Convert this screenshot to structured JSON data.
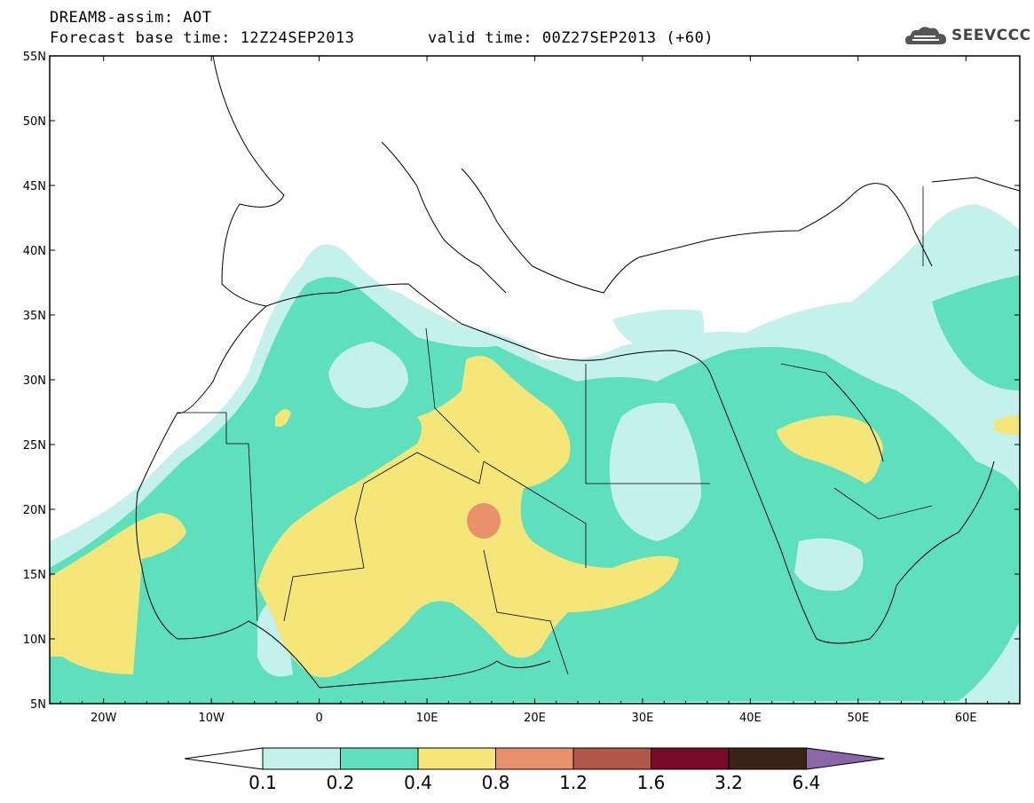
{
  "header": {
    "title_line1": "DREAM8-assim: AOT",
    "title_line2": "Forecast base time: 12Z24SEP2013",
    "valid_time": "valid time: 00Z27SEP2013 (+60)",
    "logo_text": "SEEVCCC"
  },
  "map": {
    "lon_range": [
      -25,
      65
    ],
    "lat_range": [
      5,
      55
    ],
    "lat_ticks": [
      "55N",
      "50N",
      "45N",
      "40N",
      "35N",
      "30N",
      "25N",
      "20N",
      "15N",
      "10N",
      "5N"
    ],
    "lon_ticks": [
      "20W",
      "10W",
      "0",
      "10E",
      "20E",
      "30E",
      "40E",
      "50E",
      "60E"
    ]
  },
  "colorbar": {
    "levels": [
      "0.1",
      "0.2",
      "0.4",
      "0.8",
      "1.2",
      "1.6",
      "3.2",
      "6.4"
    ],
    "colors": [
      "#ffffff",
      "#c4f1eb",
      "#5ee0bd",
      "#f5e67a",
      "#e8916a",
      "#b0574a",
      "#7a0a2a",
      "#3a2415",
      "#8a66a8"
    ]
  },
  "fields": {
    "c_low": "#c4f1eb",
    "c_mid": "#5ee0bd",
    "c_high": "#f5e67a",
    "c_peak": "#e8916a"
  }
}
